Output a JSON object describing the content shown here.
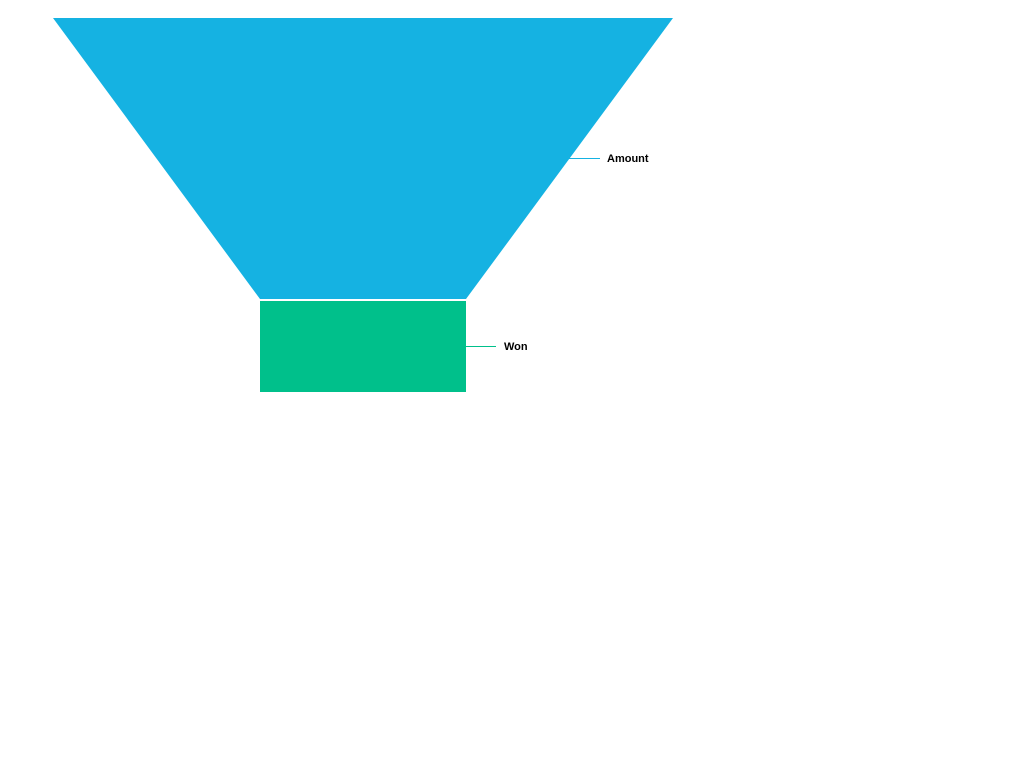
{
  "chart_data": {
    "type": "funnel",
    "stages": [
      {
        "label": "Amount",
        "color": "#15b2e2"
      },
      {
        "label": "Won",
        "color": "#00c08b"
      }
    ],
    "legend": "none",
    "grid": false
  }
}
